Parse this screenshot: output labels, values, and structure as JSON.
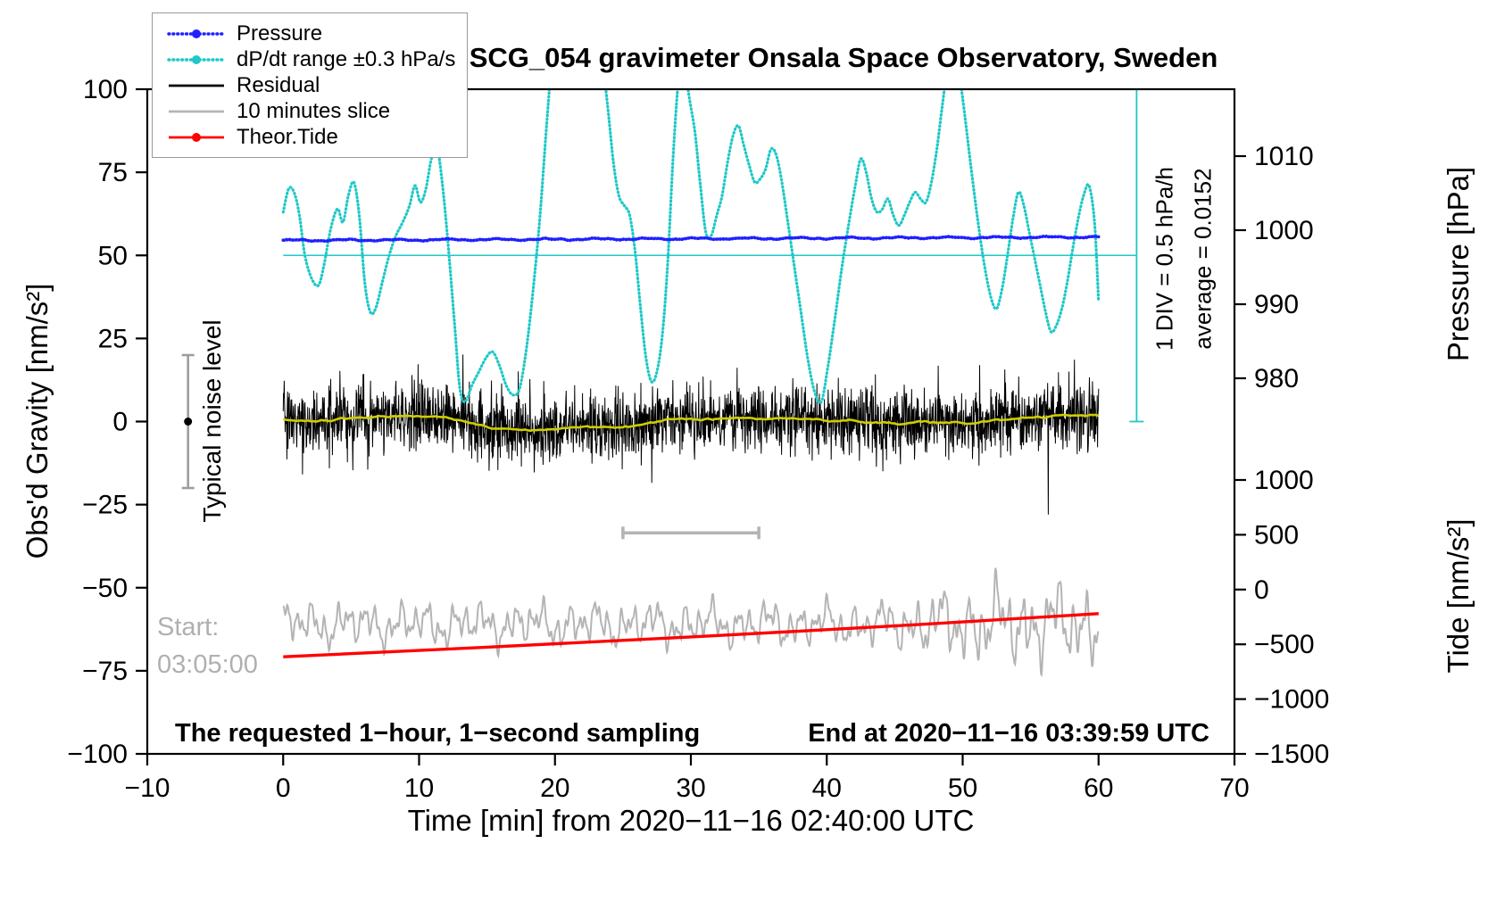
{
  "title": "SCG_054 gravimeter Onsala Space Observatory, Sweden",
  "legend": {
    "position": "top-left",
    "items": [
      {
        "label": "Pressure",
        "color": "#2020ff",
        "style": "dotted-line-with-dot",
        "icon": "pressure-line-icon"
      },
      {
        "label": "dP/dt range ±0.3 hPa/s",
        "color": "#1fc8c8",
        "style": "dotted-line-with-dot",
        "icon": "dpdt-line-icon"
      },
      {
        "label": "Residual",
        "color": "#000000",
        "style": "solid-line",
        "icon": "residual-line-icon"
      },
      {
        "label": "10 minutes slice",
        "color": "#b4b4b4",
        "style": "solid-line",
        "icon": "slice-line-icon"
      },
      {
        "label": "Theor.Tide",
        "color": "#ff0000",
        "style": "solid-line-with-dot",
        "icon": "tide-line-icon"
      }
    ]
  },
  "annotations": {
    "div_note": "1 DIV = 0.5 hPa/h",
    "average_note": "average = 0.0152",
    "noise_label": "Typical noise level",
    "start_label": "Start:",
    "start_time": "03:05:00",
    "sampling_note": "The requested 1−hour, 1−second sampling",
    "end_note": "End at 2020−11−16 03:39:59 UTC"
  },
  "chart_data": {
    "type": "line",
    "title": "SCG_054 gravimeter Onsala Space Observatory, Sweden",
    "grid": false,
    "legend_position": "top-left",
    "x_axis": {
      "label": "Time [min] from 2020−11−16 02:40:00 UTC",
      "range": [
        -10,
        70
      ],
      "ticks": [
        -10,
        0,
        10,
        20,
        30,
        40,
        50,
        60,
        70
      ]
    },
    "y_axis": {
      "label": "Obs'd Gravity [nm/s²]",
      "range": [
        -100,
        100
      ],
      "ticks": [
        100,
        75,
        50,
        25,
        0,
        -25,
        -50,
        -75,
        -100
      ]
    },
    "pressure_axis": {
      "label": "Pressure [hPa]",
      "ticks": [
        1010,
        1000,
        990,
        980
      ]
    },
    "tide_axis": {
      "label": "Tide [nm/s²]",
      "ticks": [
        1000,
        500,
        0,
        -500,
        -1000,
        -1500
      ]
    },
    "reference_lines": [
      {
        "name": "dpdt-average-line",
        "color": "#1fc8c8",
        "y": 50,
        "x_range": [
          0,
          62.8
        ]
      }
    ],
    "markers": {
      "noise_bar": {
        "x": -7,
        "y_range": [
          -20,
          20
        ],
        "dot_y": 0,
        "color": "#9e9e9e"
      },
      "scale_bar": {
        "x": 62.8,
        "y_range": [
          0,
          100
        ],
        "color": "#1fc8c8"
      },
      "interval_bar": {
        "x_range": [
          25,
          35
        ],
        "y": -33.5,
        "color": "#b4b4b4"
      }
    },
    "series": [
      {
        "key": "pressure",
        "name": "Pressure",
        "color": "#2020ff",
        "style": "dotted",
        "x_range": [
          0,
          60
        ],
        "base": 54.5,
        "slope": 0.017,
        "approx_hPa": 999
      },
      {
        "key": "dpdt",
        "name": "dP/dt range ±0.3 hPa/s",
        "color": "#1fc8c8",
        "style": "dotted",
        "average": 0.0152,
        "div_scale": "1 DIV = 0.5 hPa/h",
        "control_points": [
          [
            0,
            63
          ],
          [
            0.4,
            70
          ],
          [
            0.8,
            69
          ],
          [
            1.2,
            62
          ],
          [
            1.6,
            50
          ],
          [
            2.1,
            43
          ],
          [
            2.6,
            41
          ],
          [
            3.0,
            47
          ],
          [
            3.5,
            58
          ],
          [
            4.0,
            64
          ],
          [
            4.4,
            60
          ],
          [
            4.8,
            68
          ],
          [
            5.2,
            72
          ],
          [
            5.6,
            62
          ],
          [
            6.0,
            42
          ],
          [
            6.4,
            33
          ],
          [
            6.8,
            34
          ],
          [
            7.3,
            42
          ],
          [
            7.8,
            50
          ],
          [
            8.3,
            56
          ],
          [
            8.8,
            60
          ],
          [
            9.3,
            65
          ],
          [
            9.7,
            71
          ],
          [
            10.1,
            66
          ],
          [
            10.5,
            70
          ],
          [
            10.9,
            79
          ],
          [
            11.3,
            83
          ],
          [
            11.7,
            72
          ],
          [
            12.1,
            55
          ],
          [
            12.6,
            30
          ],
          [
            13.0,
            10
          ],
          [
            13.4,
            6
          ],
          [
            13.9,
            11
          ],
          [
            14.4,
            15
          ],
          [
            14.9,
            19
          ],
          [
            15.4,
            21
          ],
          [
            15.9,
            17
          ],
          [
            16.4,
            11
          ],
          [
            16.9,
            8
          ],
          [
            17.4,
            10
          ],
          [
            17.9,
            22
          ],
          [
            18.4,
            40
          ],
          [
            18.9,
            62
          ],
          [
            19.4,
            90
          ],
          [
            19.9,
            115
          ],
          [
            20.6,
            138
          ],
          [
            21.6,
            152
          ],
          [
            22.6,
            140
          ],
          [
            23.3,
            116
          ],
          [
            23.9,
            94
          ],
          [
            24.3,
            78
          ],
          [
            24.7,
            68
          ],
          [
            25.1,
            65
          ],
          [
            25.5,
            62
          ],
          [
            25.9,
            51
          ],
          [
            26.3,
            34
          ],
          [
            26.7,
            19
          ],
          [
            27.1,
            12
          ],
          [
            27.5,
            15
          ],
          [
            27.9,
            26
          ],
          [
            28.3,
            48
          ],
          [
            28.7,
            80
          ],
          [
            29.1,
            103
          ],
          [
            29.5,
            107
          ],
          [
            29.9,
            97
          ],
          [
            30.3,
            87
          ],
          [
            30.7,
            71
          ],
          [
            31.1,
            57
          ],
          [
            31.5,
            56
          ],
          [
            31.9,
            62
          ],
          [
            32.3,
            68
          ],
          [
            32.7,
            78
          ],
          [
            33.1,
            86
          ],
          [
            33.5,
            89
          ],
          [
            33.9,
            83
          ],
          [
            34.3,
            77
          ],
          [
            34.7,
            72
          ],
          [
            35.1,
            73
          ],
          [
            35.5,
            76
          ],
          [
            35.9,
            82
          ],
          [
            36.3,
            80
          ],
          [
            36.7,
            72
          ],
          [
            37.1,
            61
          ],
          [
            37.6,
            47
          ],
          [
            38.1,
            33
          ],
          [
            38.6,
            19
          ],
          [
            39.1,
            9
          ],
          [
            39.6,
            6
          ],
          [
            40.1,
            17
          ],
          [
            40.6,
            31
          ],
          [
            41.1,
            46
          ],
          [
            41.6,
            59
          ],
          [
            42.1,
            71
          ],
          [
            42.5,
            79
          ],
          [
            42.9,
            75
          ],
          [
            43.3,
            67
          ],
          [
            43.7,
            63
          ],
          [
            44.1,
            64
          ],
          [
            44.5,
            67
          ],
          [
            44.9,
            62
          ],
          [
            45.3,
            59
          ],
          [
            45.7,
            62
          ],
          [
            46.1,
            66
          ],
          [
            46.5,
            69
          ],
          [
            46.9,
            67
          ],
          [
            47.3,
            66
          ],
          [
            47.7,
            72
          ],
          [
            48.1,
            82
          ],
          [
            48.5,
            95
          ],
          [
            48.9,
            107
          ],
          [
            49.3,
            112
          ],
          [
            49.7,
            106
          ],
          [
            50.1,
            94
          ],
          [
            50.6,
            77
          ],
          [
            51.1,
            61
          ],
          [
            51.6,
            47
          ],
          [
            52.1,
            37
          ],
          [
            52.5,
            34
          ],
          [
            52.9,
            40
          ],
          [
            53.3,
            50
          ],
          [
            53.7,
            61
          ],
          [
            54.1,
            69
          ],
          [
            54.5,
            65
          ],
          [
            54.9,
            57
          ],
          [
            55.3,
            49
          ],
          [
            55.7,
            41
          ],
          [
            56.1,
            33
          ],
          [
            56.5,
            27
          ],
          [
            56.9,
            29
          ],
          [
            57.3,
            34
          ],
          [
            57.7,
            42
          ],
          [
            58.1,
            52
          ],
          [
            58.5,
            61
          ],
          [
            58.9,
            68
          ],
          [
            59.3,
            71
          ],
          [
            59.7,
            60
          ],
          [
            60.0,
            36
          ]
        ]
      },
      {
        "key": "residual",
        "name": "Residual",
        "color": "#000000",
        "style": "solid",
        "x_range": [
          0,
          60
        ],
        "mean": 0,
        "std": 5.3,
        "spike_x": 56.3,
        "spike_value": -28
      },
      {
        "key": "residual_mean",
        "name": "Residual smoothed mean",
        "color": "#cdcd00",
        "style": "solid",
        "derived_from": "residual"
      },
      {
        "key": "slice",
        "name": "10 minutes slice",
        "color": "#b4b4b4",
        "style": "solid",
        "x_range": [
          0,
          60
        ],
        "mean": -61,
        "amp_base": 5.5,
        "amp_extra": 4.5
      },
      {
        "key": "tide",
        "name": "Theor.Tide",
        "color": "#ff0000",
        "style": "solid",
        "points": [
          [
            0,
            -70.8
          ],
          [
            15,
            -67.9
          ],
          [
            30,
            -64.8
          ],
          [
            45,
            -61.5
          ],
          [
            60,
            -57.8
          ]
        ]
      }
    ]
  }
}
